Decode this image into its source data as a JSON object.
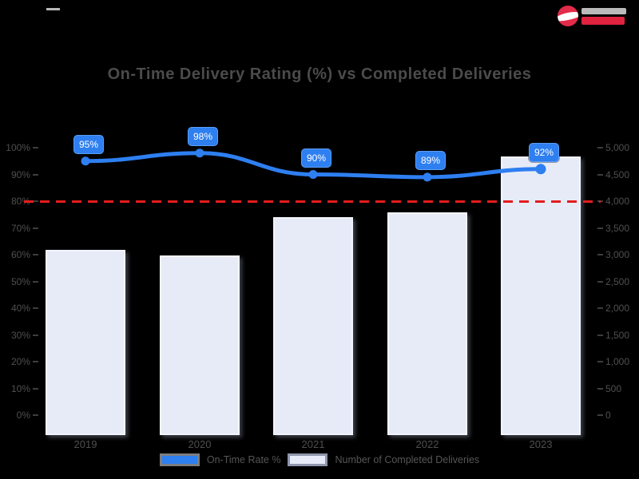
{
  "page": {
    "background": "#000000"
  },
  "chart_data": {
    "type": "bar+line",
    "title": "On-Time Delivery Rating (%) vs Completed Deliveries",
    "categories": [
      "2019",
      "2020",
      "2021",
      "2022",
      "2023"
    ],
    "series": [
      {
        "name": "On-Time Rate %",
        "type": "line",
        "axis": "left",
        "values": [
          95,
          98,
          90,
          89,
          92
        ],
        "point_labels": [
          "95%",
          "98%",
          "90%",
          "89%",
          "92%"
        ],
        "color": "#2e7ff0"
      },
      {
        "name": "Number of Completed Deliveries",
        "type": "bar",
        "axis": "right",
        "values": [
          3220,
          3125,
          3790,
          3875,
          4845
        ],
        "color": "#e7ebf8"
      }
    ],
    "left_axis": {
      "min": 0,
      "max": 100,
      "tick_labels": [
        "100%",
        "90%",
        "80%",
        "70%",
        "60%",
        "50%",
        "40%",
        "30%",
        "20%",
        "10%",
        "0%"
      ]
    },
    "right_axis": {
      "min": 0,
      "max": 5000,
      "tick_labels": [
        "5,000",
        "4,500",
        "4,000",
        "3,500",
        "3,000",
        "2,500",
        "2,000",
        "1,500",
        "1,000",
        "500",
        "0"
      ]
    },
    "target_line": {
      "value": 80,
      "color": "#e51c1c",
      "style": "dashed"
    },
    "legend_position": "bottom",
    "grid": false,
    "colors": {
      "line": "#2e7ff0",
      "chip_border": "#5c9ef3",
      "bar_fill": "#e7ebf8",
      "bar_border": "#f2f4fb",
      "target": "#e51c1c",
      "text": "#4f4f4f"
    }
  },
  "legend": {
    "items": [
      {
        "label": "On-Time Rate %",
        "swatch": "#2e7ff0",
        "swatch_border": "#7d7d7d"
      },
      {
        "label": "Number of Completed Deliveries",
        "swatch": "#e7ebf8",
        "swatch_border": "#8f96ad"
      }
    ]
  }
}
